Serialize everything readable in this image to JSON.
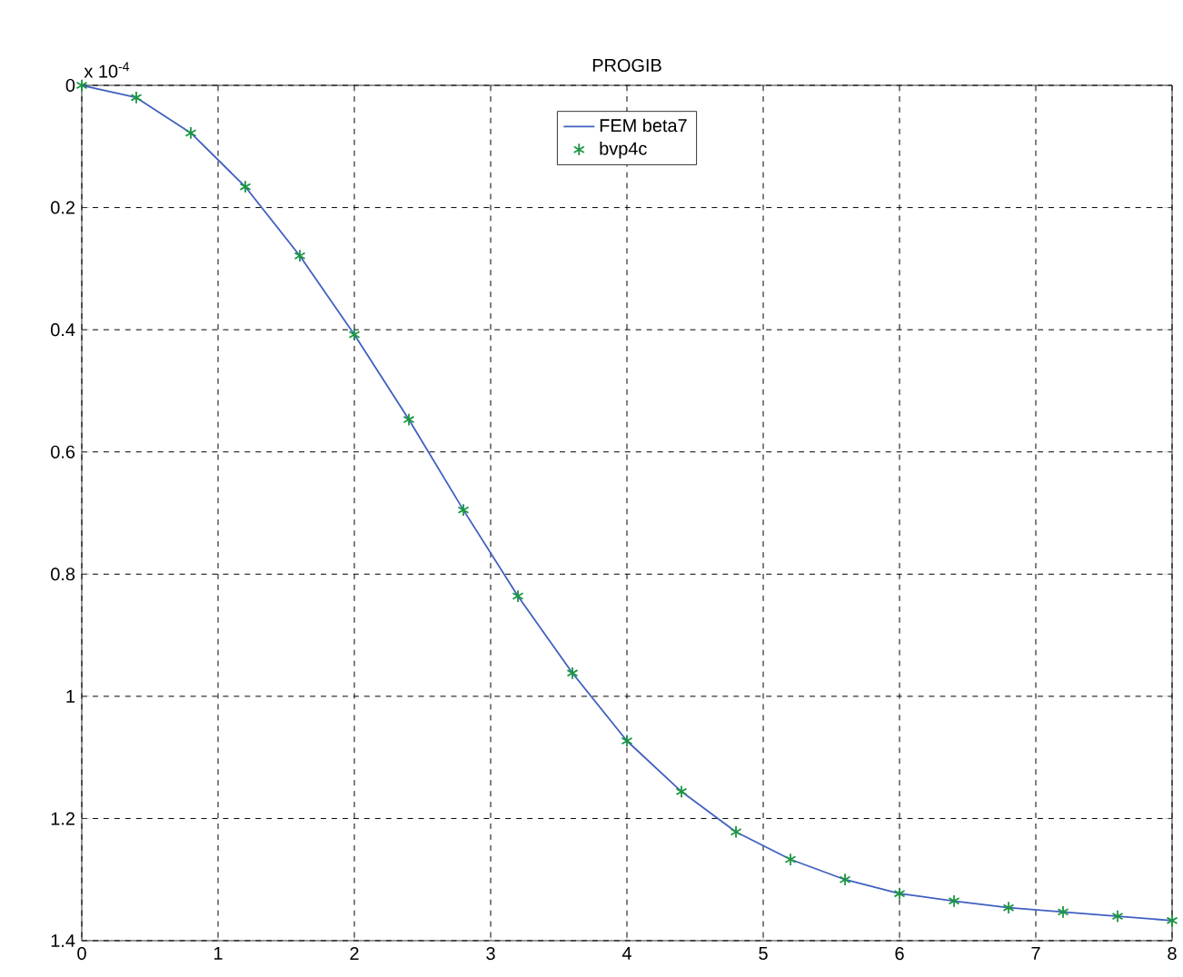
{
  "chart_data": {
    "type": "line",
    "title": "PROGIB",
    "annotations": [
      "x 10$^{-4}$"
    ],
    "xlim": [
      0,
      8
    ],
    "xticks": [
      0,
      1,
      2,
      3,
      4,
      5,
      6,
      7,
      8
    ],
    "ylim": [
      1.4,
      0
    ],
    "yticks": [
      0,
      0.2,
      0.4,
      0.6,
      0.8,
      1,
      1.2,
      1.4
    ],
    "grid": true,
    "legend": "top",
    "series": [
      {
        "name": "FEM beta7",
        "marker": "none",
        "color": "#4060c0",
        "x": [
          0,
          0.4,
          0.8,
          1.2,
          1.6,
          2,
          2.4,
          2.8,
          3.2,
          3.6,
          4,
          4.4,
          4.8,
          5.2,
          5.6,
          6,
          6.4,
          6.8,
          7.2,
          7.6,
          8
        ],
        "values": [
          0,
          0.02,
          0.078,
          0.166,
          0.279,
          0.408,
          0.547,
          0.695,
          0.836,
          0.962,
          1.073,
          1.156,
          1.222,
          1.267,
          1.3,
          1.323,
          1.335,
          1.346,
          1.353,
          1.36,
          1.367
        ]
      },
      {
        "name": "bvp4c",
        "type": "scatter",
        "marker": "cross",
        "color": "#1a9641",
        "x": [
          0,
          0.4,
          0.8,
          1.2,
          1.6,
          2,
          2.4,
          2.8,
          3.2,
          3.6,
          4,
          4.4,
          4.8,
          5.2,
          5.6,
          6,
          6.4,
          6.8,
          7.2,
          7.6,
          8
        ],
        "values": [
          0,
          0.02,
          0.078,
          0.166,
          0.279,
          0.408,
          0.547,
          0.695,
          0.836,
          0.962,
          1.073,
          1.156,
          1.222,
          1.267,
          1.3,
          1.323,
          1.335,
          1.346,
          1.353,
          1.36,
          1.367
        ]
      }
    ]
  }
}
